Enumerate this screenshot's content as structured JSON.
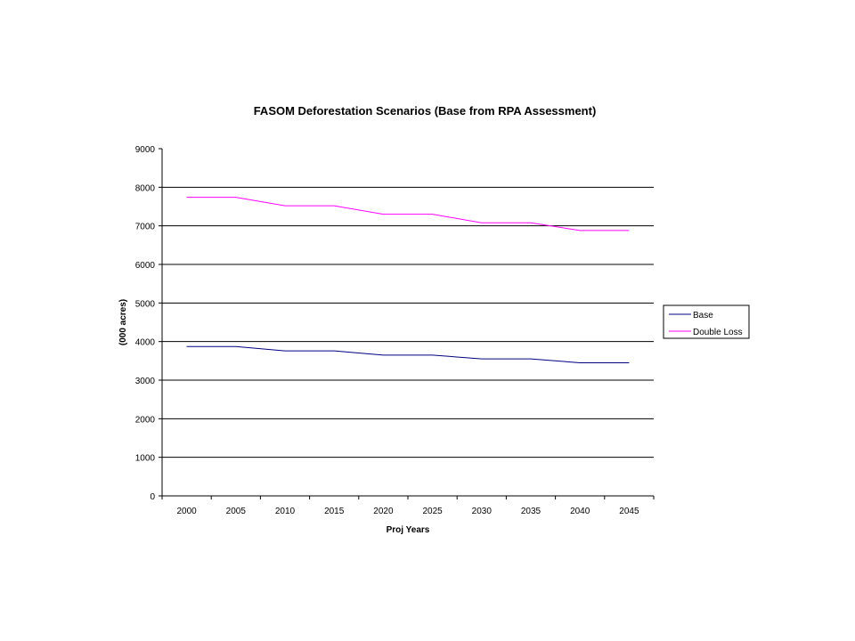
{
  "chart_data": {
    "type": "line",
    "title": "FASOM Deforestation Scenarios (Base from RPA Assessment)",
    "xlabel": "Proj Years",
    "ylabel": "(000 acres)",
    "categories": [
      "2000",
      "2005",
      "2010",
      "2015",
      "2020",
      "2025",
      "2030",
      "2035",
      "2040",
      "2045"
    ],
    "ylim": [
      0,
      9000
    ],
    "yticks": [
      0,
      1000,
      2000,
      3000,
      4000,
      5000,
      6000,
      7000,
      8000,
      9000
    ],
    "grid": true,
    "legend_position": "right",
    "series": [
      {
        "name": "Base",
        "color": "#000080",
        "values": [
          3870,
          3870,
          3760,
          3760,
          3650,
          3650,
          3550,
          3550,
          3450,
          3450
        ]
      },
      {
        "name": "Double Loss",
        "color": "#ff00ff",
        "values": [
          7740,
          7740,
          7520,
          7520,
          7300,
          7300,
          7080,
          7080,
          6880,
          6880
        ]
      }
    ]
  }
}
